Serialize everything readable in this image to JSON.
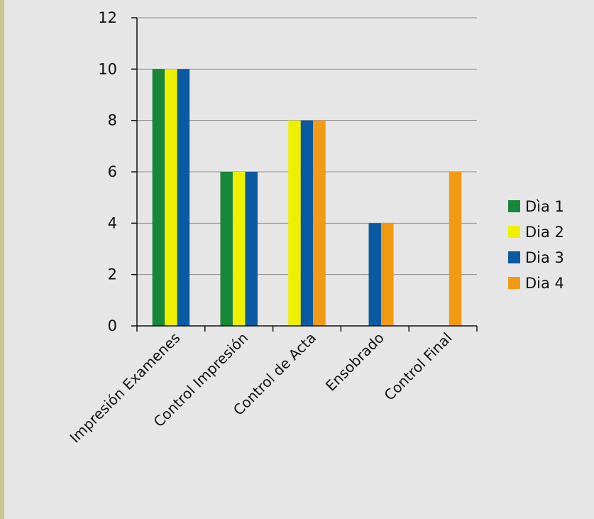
{
  "chart_data": {
    "type": "bar",
    "categories": [
      "Impresión Examenes",
      "Control Impresión",
      "Control de Acta",
      "Ensobrado",
      "Control Final"
    ],
    "series": [
      {
        "name": "Dìa 1",
        "color": "#17873a",
        "values": [
          10,
          6,
          null,
          null,
          null
        ]
      },
      {
        "name": "Dia 2",
        "color": "#eef000",
        "values": [
          10,
          6,
          8,
          null,
          null
        ]
      },
      {
        "name": "Dia 3",
        "color": "#0a5aa3",
        "values": [
          10,
          6,
          8,
          4,
          null
        ]
      },
      {
        "name": "Dia 4",
        "color": "#f39a14",
        "values": [
          null,
          null,
          8,
          4,
          6
        ]
      }
    ],
    "ylim": [
      0,
      12
    ],
    "yticks": [
      "0",
      "2",
      "4",
      "6",
      "8",
      "10",
      "12"
    ],
    "grid": true,
    "legend": "right",
    "background": "#e6e6e6",
    "gridline_color": "#8c8c8c"
  }
}
